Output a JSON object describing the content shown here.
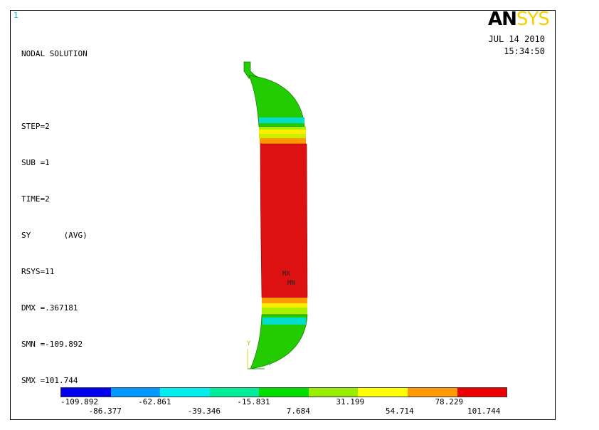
{
  "window_number": "1",
  "info": {
    "lines": [
      "NODAL SOLUTION",
      "",
      "STEP=2",
      "SUB =1",
      "TIME=2",
      "SY       (AVG)",
      "RSYS=11",
      "DMX =.367181",
      "SMN =-109.892",
      "SMX =101.744"
    ]
  },
  "logo": {
    "an": "AN",
    "sys": "SYS"
  },
  "date": "JUL 14 2010",
  "time": "15:34:50",
  "labels": {
    "mx": "MX",
    "mn": "MN",
    "axis_y": "Y",
    "axis_x": "X"
  },
  "legend": {
    "colors": [
      "#0000ee",
      "#0099ff",
      "#00eeee",
      "#00ee99",
      "#00dd00",
      "#99ee00",
      "#ffff00",
      "#ff9900",
      "#ee0000"
    ],
    "top_ticks": [
      "-109.892",
      "-62.861",
      "-15.831",
      "31.199",
      "78.229"
    ],
    "bottom_ticks": [
      "-86.377",
      "-39.346",
      "7.684",
      "54.714",
      "101.744"
    ]
  },
  "model_colors": {
    "shell": "#22cc00",
    "body": "#dd1111",
    "yellow": "#ffee00",
    "orange": "#ff9900",
    "lime": "#aaee00",
    "cyan": "#00ddcc"
  }
}
